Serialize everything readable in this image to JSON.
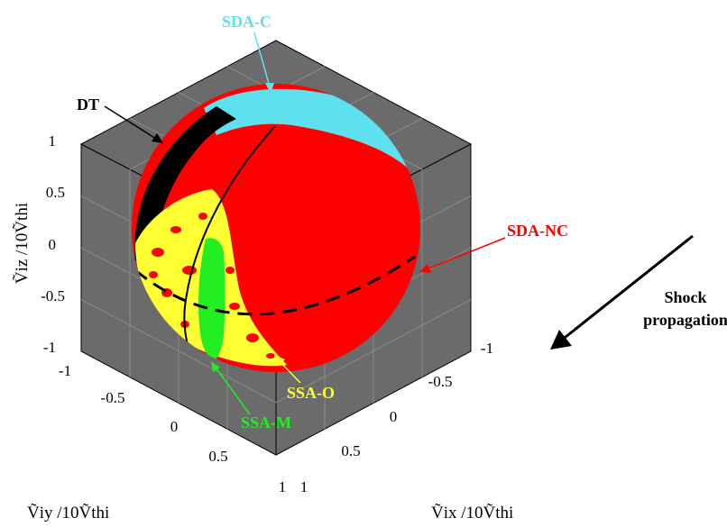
{
  "chart_data": {
    "type": "3d-sphere",
    "xlabel": "Ṽix /10Ṽthi",
    "ylabel": "Ṽiy /10Ṽthi",
    "zlabel": "Ṽiz /10Ṽthi",
    "xlim": [
      -1,
      1
    ],
    "ylim": [
      -1,
      1
    ],
    "zlim": [
      -1,
      1
    ],
    "x_ticks": [
      "-1",
      "-0.5",
      "0",
      "0.5",
      "1"
    ],
    "y_ticks": [
      "-1",
      "-0.5",
      "0",
      "0.5",
      "1"
    ],
    "z_ticks": [
      "1",
      "0.5",
      "0",
      "-0.5",
      "-1"
    ],
    "grid": true,
    "regions": [
      {
        "name": "SDA-C",
        "color": "#5ee0ee"
      },
      {
        "name": "DT",
        "color": "#000000"
      },
      {
        "name": "SDA-NC",
        "color": "#ff0000"
      },
      {
        "name": "SSA-O",
        "color": "#ffff33"
      },
      {
        "name": "SSA-M",
        "color": "#22ee22"
      }
    ],
    "annotation": {
      "text_line1": "Shock",
      "text_line2": "propagation",
      "color": "#000000"
    }
  },
  "colors": {
    "panel": "#6b6b6b",
    "grid": "#8a8a8a"
  }
}
